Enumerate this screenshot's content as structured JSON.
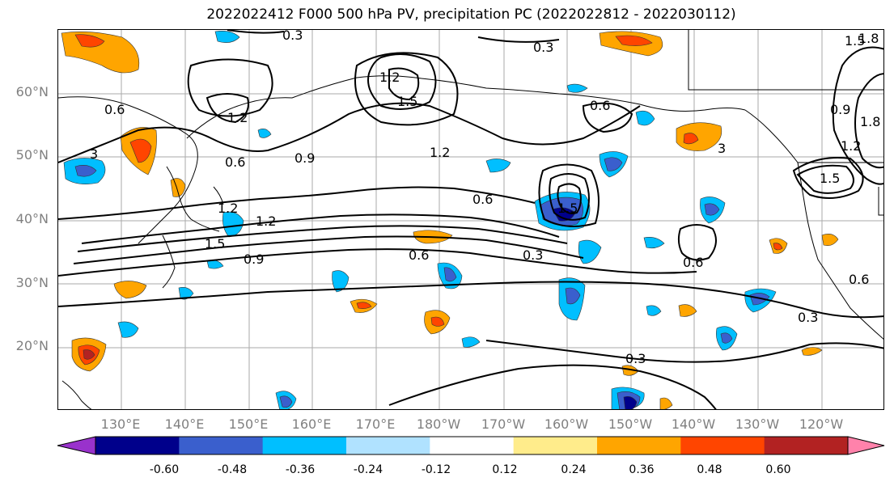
{
  "title": "2022022412 F000 500 hPa PV, precipitation PC (2022022812 - 2022030112)",
  "lat_labels": [
    "60°N",
    "50°N",
    "40°N",
    "30°N",
    "20°N"
  ],
  "lon_labels": [
    "130°E",
    "140°E",
    "150°E",
    "160°E",
    "170°E",
    "180°W",
    "170°W",
    "160°W",
    "150°W",
    "140°W",
    "130°W",
    "120°W"
  ],
  "contour_labels": [
    "0.3",
    "0.6",
    "0.9",
    "1.2",
    "1.5",
    "1.8",
    "3"
  ],
  "colorbar": {
    "ticks": [
      "-0.60",
      "-0.48",
      "-0.36",
      "-0.24",
      "-0.12",
      "0.12",
      "0.24",
      "0.36",
      "0.48",
      "0.60"
    ],
    "colors": [
      "#9932cc",
      "#00008b",
      "#3a5fcd",
      "#00bfff",
      "#b0e2ff",
      "#ffffff",
      "#ffec8b",
      "#ffa500",
      "#ff4500",
      "#b22222",
      "#ff82ab"
    ]
  },
  "map": {
    "extent_lon": [
      120,
      250
    ],
    "extent_lat": [
      10,
      70
    ],
    "grid": true
  }
}
